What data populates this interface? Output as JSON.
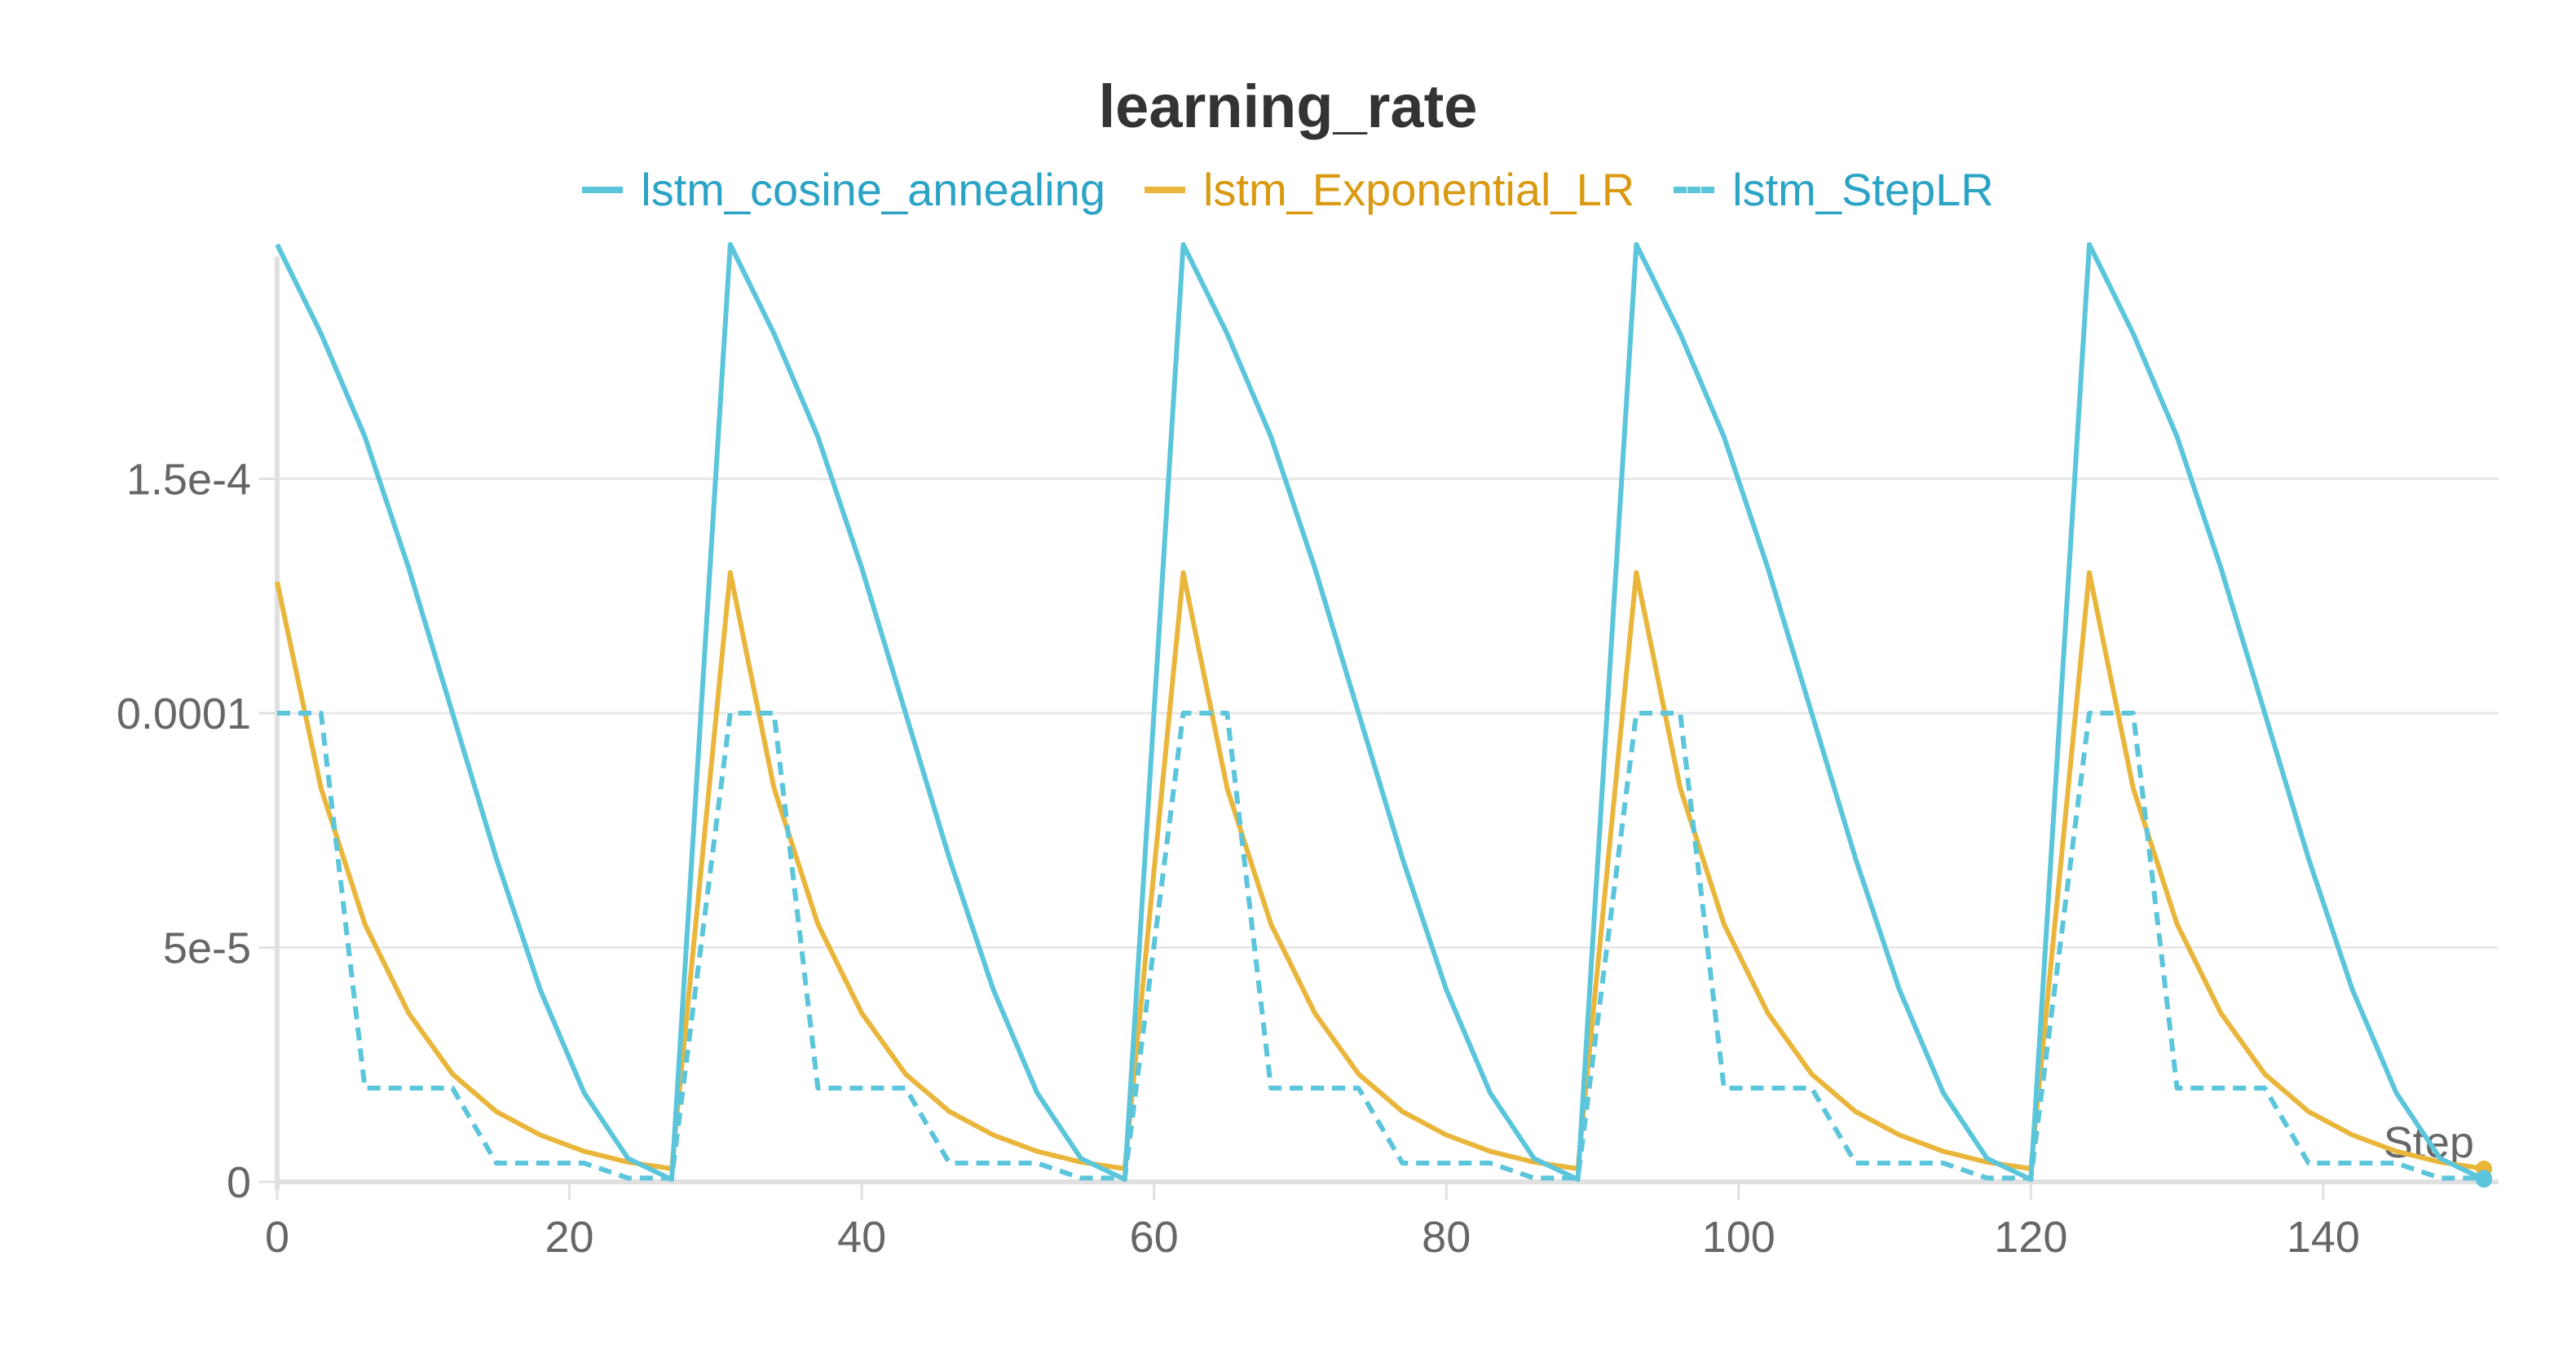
{
  "chart_data": {
    "type": "line",
    "title": "learning_rate",
    "xlabel": "Step",
    "ylabel": "",
    "xlim": [
      0,
      152
    ],
    "ylim": [
      0,
      0.0002
    ],
    "grid": true,
    "legend_placement": "top-center",
    "x_ticks": [
      0,
      20,
      40,
      60,
      80,
      100,
      120,
      140
    ],
    "x_tick_labels": [
      "0",
      "20",
      "40",
      "60",
      "80",
      "100",
      "120",
      "140"
    ],
    "y_ticks": [
      0,
      5e-05,
      0.0001,
      0.00015
    ],
    "y_tick_labels": [
      "0",
      "5e-5",
      "0.0001",
      "1.5e-4"
    ],
    "series": [
      {
        "name": "lstm_cosine_annealing",
        "color": "#5bc5db",
        "dash": "solid",
        "x": [
          0,
          3,
          6,
          9,
          12,
          15,
          18,
          21,
          24,
          27,
          31,
          34,
          37,
          40,
          43,
          46,
          49,
          52,
          55,
          58,
          62,
          65,
          68,
          71,
          74,
          77,
          80,
          83,
          86,
          89,
          93,
          96,
          99,
          102,
          105,
          108,
          111,
          114,
          117,
          120,
          124,
          127,
          130,
          133,
          136,
          139,
          142,
          145,
          148,
          151
        ],
        "y": [
          0.0002,
          0.000181,
          0.000159,
          0.000131,
          0.0001,
          6.9e-05,
          4.1e-05,
          1.9e-05,
          5e-06,
          5e-07,
          0.0002,
          0.000181,
          0.000159,
          0.000131,
          0.0001,
          6.9e-05,
          4.1e-05,
          1.9e-05,
          5e-06,
          5e-07,
          0.0002,
          0.000181,
          0.000159,
          0.000131,
          0.0001,
          6.9e-05,
          4.1e-05,
          1.9e-05,
          5e-06,
          5e-07,
          0.0002,
          0.000181,
          0.000159,
          0.000131,
          0.0001,
          6.9e-05,
          4.1e-05,
          1.9e-05,
          5e-06,
          5e-07,
          0.0002,
          0.000181,
          0.000159,
          0.000131,
          0.0001,
          6.9e-05,
          4.1e-05,
          1.9e-05,
          5e-06,
          5e-07
        ]
      },
      {
        "name": "lstm_Exponential_LR",
        "color": "#e9b63b",
        "dash": "solid",
        "x": [
          0,
          3,
          6,
          9,
          12,
          15,
          18,
          21,
          24,
          27,
          31,
          34,
          37,
          40,
          43,
          46,
          49,
          52,
          55,
          58,
          62,
          65,
          68,
          71,
          74,
          77,
          80,
          83,
          86,
          89,
          93,
          96,
          99,
          102,
          105,
          108,
          111,
          114,
          117,
          120,
          124,
          127,
          130,
          133,
          136,
          139,
          142,
          145,
          148,
          151
        ],
        "y": [
          0.000128,
          8.4e-05,
          5.5e-05,
          3.6e-05,
          2.3e-05,
          1.5e-05,
          1e-05,
          6.5e-06,
          4.2e-06,
          2.8e-06,
          0.00013,
          8.4e-05,
          5.5e-05,
          3.6e-05,
          2.3e-05,
          1.5e-05,
          1e-05,
          6.5e-06,
          4.2e-06,
          2.8e-06,
          0.00013,
          8.4e-05,
          5.5e-05,
          3.6e-05,
          2.3e-05,
          1.5e-05,
          1e-05,
          6.5e-06,
          4.2e-06,
          2.8e-06,
          0.00013,
          8.4e-05,
          5.5e-05,
          3.6e-05,
          2.3e-05,
          1.5e-05,
          1e-05,
          6.5e-06,
          4.2e-06,
          2.8e-06,
          0.00013,
          8.4e-05,
          5.5e-05,
          3.6e-05,
          2.3e-05,
          1.5e-05,
          1e-05,
          6.5e-06,
          4.2e-06,
          2.8e-06
        ]
      },
      {
        "name": "lstm_StepLR",
        "color": "#5bc5db",
        "dash": "dashed",
        "x": [
          0,
          3,
          6,
          9,
          12,
          15,
          18,
          21,
          24,
          27,
          31,
          34,
          37,
          40,
          43,
          46,
          49,
          52,
          55,
          58,
          62,
          65,
          68,
          71,
          74,
          77,
          80,
          83,
          86,
          89,
          93,
          96,
          99,
          102,
          105,
          108,
          111,
          114,
          117,
          120,
          124,
          127,
          130,
          133,
          136,
          139,
          142,
          145,
          148,
          151
        ],
        "y": [
          0.0001,
          0.0001,
          2e-05,
          2e-05,
          2e-05,
          4e-06,
          4e-06,
          4e-06,
          8e-07,
          8e-07,
          0.0001,
          0.0001,
          2e-05,
          2e-05,
          2e-05,
          4e-06,
          4e-06,
          4e-06,
          8e-07,
          8e-07,
          0.0001,
          0.0001,
          2e-05,
          2e-05,
          2e-05,
          4e-06,
          4e-06,
          4e-06,
          8e-07,
          8e-07,
          0.0001,
          0.0001,
          2e-05,
          2e-05,
          2e-05,
          4e-06,
          4e-06,
          4e-06,
          8e-07,
          8e-07,
          0.0001,
          0.0001,
          2e-05,
          2e-05,
          2e-05,
          4e-06,
          4e-06,
          4e-06,
          8e-07,
          8e-07
        ]
      }
    ]
  }
}
